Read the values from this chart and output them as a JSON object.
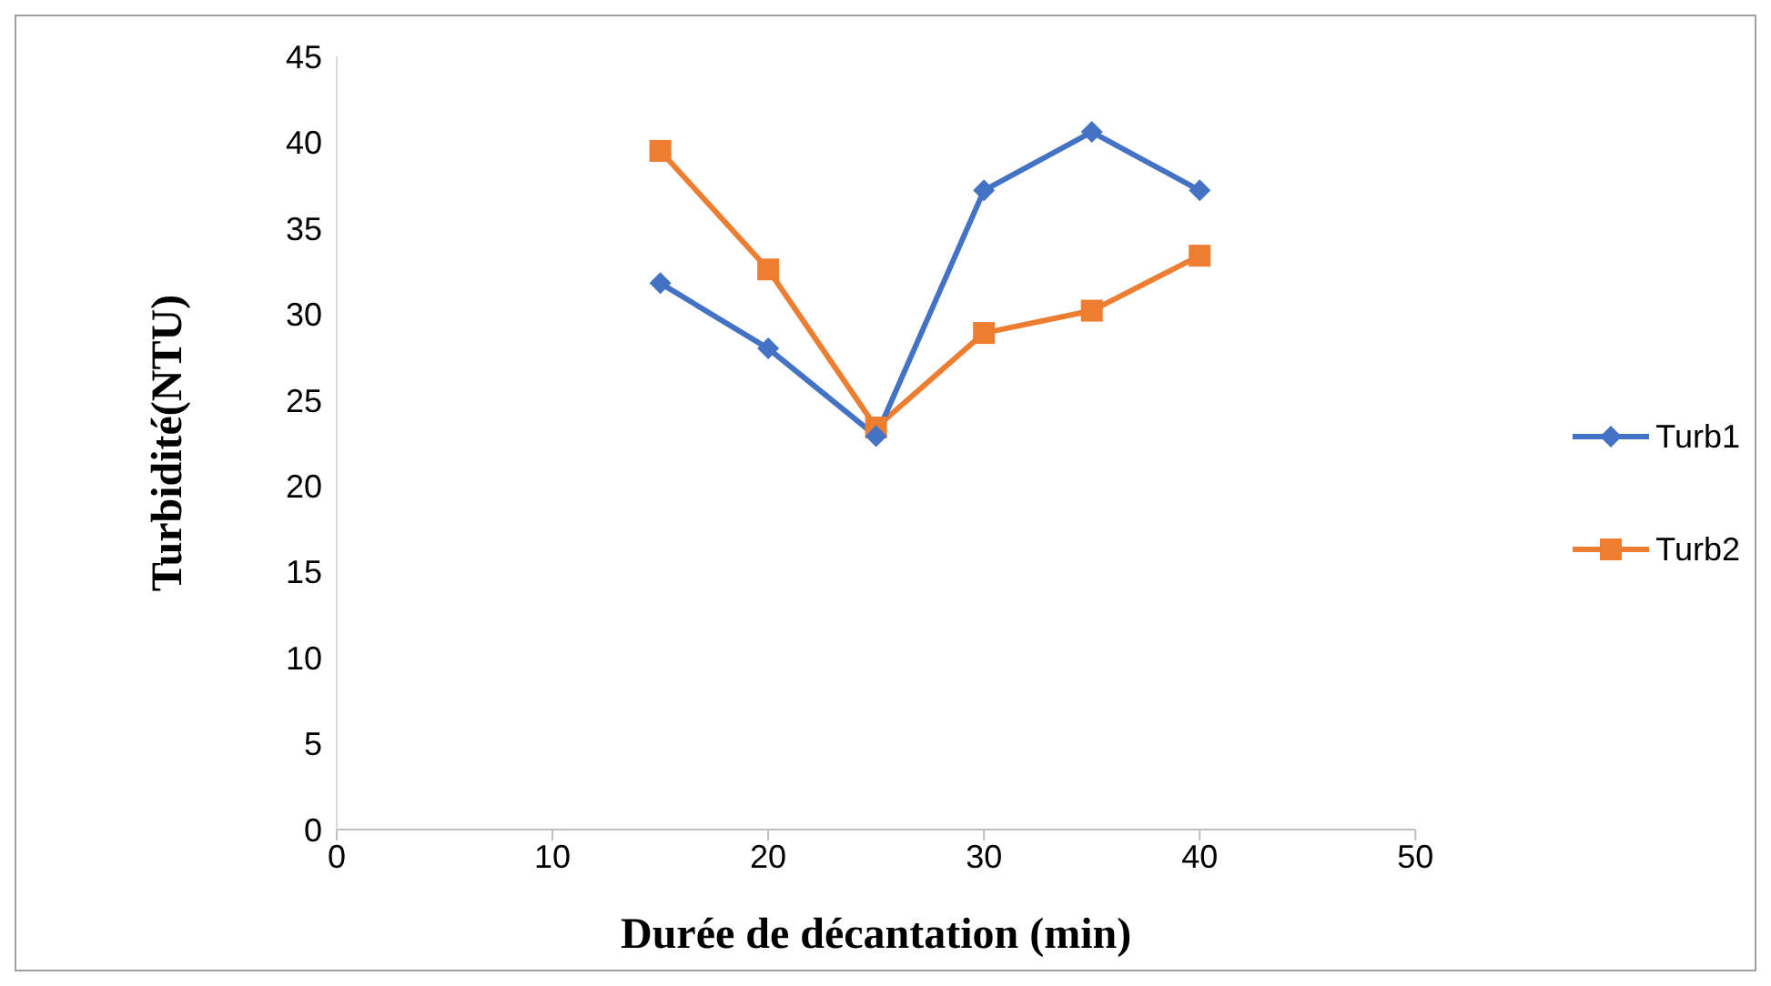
{
  "chart_data": {
    "type": "line",
    "xlabel": "Durée de décantation (min)",
    "ylabel": "Turbidité(NTU)",
    "x": [
      15,
      20,
      25,
      30,
      35,
      40
    ],
    "series": [
      {
        "name": "Turb1",
        "color": "#4472c4",
        "marker": "diamond",
        "values": [
          31.8,
          28,
          22.9,
          37.2,
          40.6,
          37.2
        ]
      },
      {
        "name": "Turb2",
        "color": "#ed7d31",
        "marker": "square",
        "values": [
          39.5,
          32.6,
          23.4,
          28.9,
          30.2,
          33.4
        ]
      }
    ],
    "xlim": [
      0,
      50
    ],
    "xticks": [
      0,
      10,
      20,
      30,
      40,
      50
    ],
    "ylim": [
      0,
      45
    ],
    "yticks": [
      0,
      5,
      10,
      15,
      20,
      25,
      30,
      35,
      40,
      45
    ],
    "grid": false,
    "legend": "right"
  }
}
